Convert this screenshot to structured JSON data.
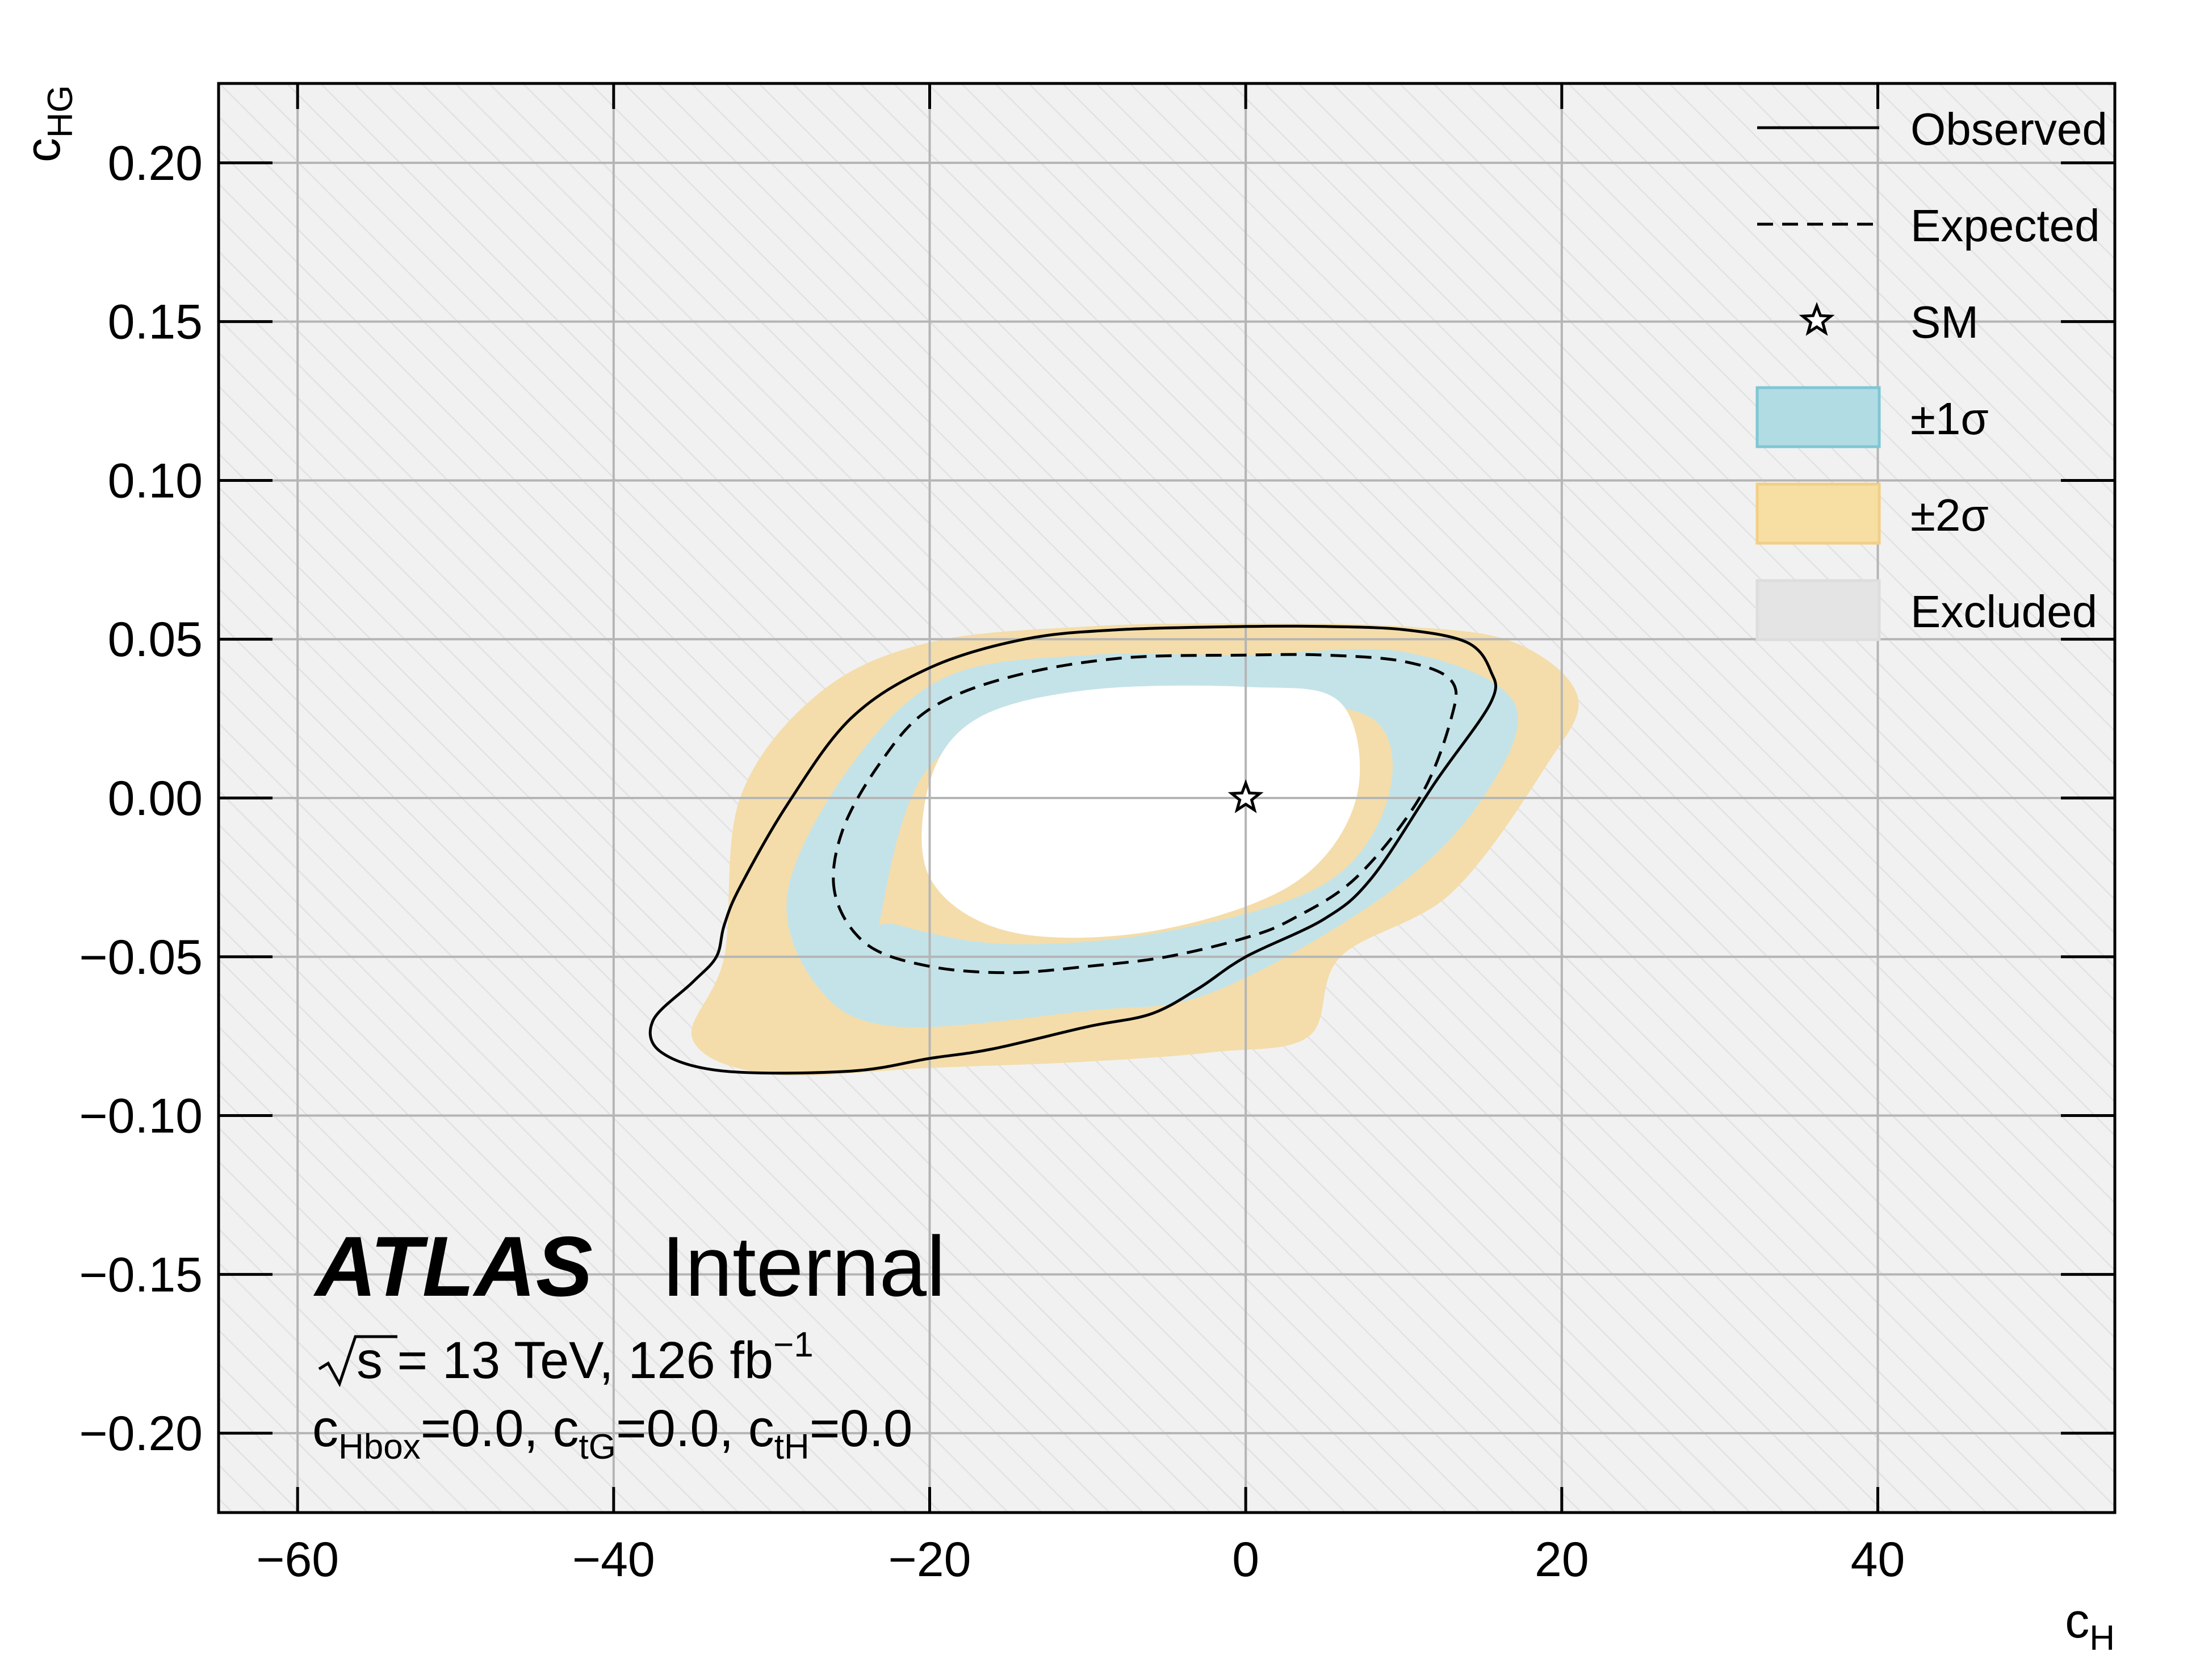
{
  "chart_data": {
    "type": "contour",
    "xlabel": "c",
    "xlabel_sub": "H",
    "ylabel": "c",
    "ylabel_sub": "HG",
    "xlim": [
      -65,
      55
    ],
    "ylim": [
      -0.225,
      0.225
    ],
    "x_ticks": [
      {
        "v": -60,
        "label": "−60"
      },
      {
        "v": -40,
        "label": "−40"
      },
      {
        "v": -20,
        "label": "−20"
      },
      {
        "v": 0,
        "label": "0"
      },
      {
        "v": 20,
        "label": "20"
      },
      {
        "v": 40,
        "label": "40"
      }
    ],
    "y_ticks": [
      {
        "v": 0.2,
        "label": "0.20"
      },
      {
        "v": 0.15,
        "label": "0.15"
      },
      {
        "v": 0.1,
        "label": "0.10"
      },
      {
        "v": 0.05,
        "label": "0.05"
      },
      {
        "v": 0.0,
        "label": "0.00"
      },
      {
        "v": -0.05,
        "label": "−0.05"
      },
      {
        "v": -0.1,
        "label": "−0.10"
      },
      {
        "v": -0.15,
        "label": "−0.15"
      },
      {
        "v": -0.2,
        "label": "−0.20"
      }
    ],
    "grid": true,
    "sm_point": {
      "x": 0,
      "y": 0
    },
    "series": [
      {
        "name": "±2σ",
        "kind": "band",
        "color": "#f4ddaa",
        "outer": [
          [
            -32,
            0.0
          ],
          [
            -27,
            0.033
          ],
          [
            -20,
            0.049
          ],
          [
            -10,
            0.054
          ],
          [
            0,
            0.055
          ],
          [
            10,
            0.054
          ],
          [
            17,
            0.049
          ],
          [
            21,
            0.032
          ],
          [
            19,
            0.01
          ],
          [
            13,
            -0.03
          ],
          [
            6,
            -0.05
          ],
          [
            4,
            -0.075
          ],
          [
            -2,
            -0.08
          ],
          [
            -10,
            -0.083
          ],
          [
            -20,
            -0.085
          ],
          [
            -30,
            -0.087
          ],
          [
            -35,
            -0.076
          ],
          [
            -33,
            -0.05
          ]
        ],
        "inner": [
          [
            -20,
            -0.025
          ],
          [
            -20,
            0.005
          ],
          [
            -17,
            0.025
          ],
          [
            -10,
            0.034
          ],
          [
            0,
            0.035
          ],
          [
            6,
            0.03
          ],
          [
            7,
            0.0
          ],
          [
            3,
            -0.027
          ],
          [
            -6,
            -0.042
          ],
          [
            -15,
            -0.042
          ]
        ]
      },
      {
        "name": "±1σ",
        "kind": "band",
        "color": "#c4e3e9",
        "outer": [
          [
            -29,
            -0.03
          ],
          [
            -25,
            0.01
          ],
          [
            -19,
            0.038
          ],
          [
            -10,
            0.045
          ],
          [
            0,
            0.045
          ],
          [
            10,
            0.046
          ],
          [
            17,
            0.03
          ],
          [
            15,
            0.0
          ],
          [
            9,
            -0.03
          ],
          [
            -2,
            -0.061
          ],
          [
            -10,
            -0.067
          ],
          [
            -22,
            -0.072
          ],
          [
            -27,
            -0.06
          ]
        ],
        "inner": [
          [
            -23,
            -0.035
          ],
          [
            -20,
            0.01
          ],
          [
            -12,
            0.028
          ],
          [
            0,
            0.03
          ],
          [
            8,
            0.025
          ],
          [
            9,
            0.0
          ],
          [
            5,
            -0.027
          ],
          [
            -5,
            -0.042
          ],
          [
            -15,
            -0.046
          ],
          [
            -22,
            -0.04
          ]
        ]
      },
      {
        "name": "Observed",
        "kind": "line",
        "style": "solid",
        "color": "#000000",
        "points": [
          [
            -37.5,
            -0.07
          ],
          [
            -35,
            -0.058
          ],
          [
            -33.5,
            -0.05
          ],
          [
            -33,
            -0.04
          ],
          [
            -32,
            -0.028
          ],
          [
            -29,
            -0.002
          ],
          [
            -25,
            0.025
          ],
          [
            -20,
            0.041
          ],
          [
            -14,
            0.05
          ],
          [
            -8,
            0.053
          ],
          [
            0,
            0.054
          ],
          [
            5,
            0.054
          ],
          [
            10,
            0.053
          ],
          [
            14,
            0.049
          ],
          [
            15.5,
            0.04
          ],
          [
            15.5,
            0.03
          ],
          [
            12,
            0.005
          ],
          [
            8,
            -0.025
          ],
          [
            5,
            -0.038
          ],
          [
            0,
            -0.05
          ],
          [
            -3,
            -0.06
          ],
          [
            -6,
            -0.068
          ],
          [
            -10,
            -0.072
          ],
          [
            -16,
            -0.079
          ],
          [
            -20,
            -0.082
          ],
          [
            -25,
            -0.086
          ],
          [
            -33,
            -0.086
          ],
          [
            -37,
            -0.08
          ]
        ]
      },
      {
        "name": "Expected",
        "kind": "line",
        "style": "dashed",
        "color": "#000000",
        "points": [
          [
            -26,
            -0.03
          ],
          [
            -25.5,
            -0.01
          ],
          [
            -23,
            0.012
          ],
          [
            -20,
            0.028
          ],
          [
            -15,
            0.038
          ],
          [
            -8,
            0.044
          ],
          [
            0,
            0.045
          ],
          [
            5,
            0.045
          ],
          [
            10,
            0.043
          ],
          [
            13,
            0.037
          ],
          [
            13,
            0.025
          ],
          [
            11,
            0.0
          ],
          [
            7,
            -0.025
          ],
          [
            3,
            -0.038
          ],
          [
            0,
            -0.044
          ],
          [
            -5,
            -0.05
          ],
          [
            -10,
            -0.053
          ],
          [
            -15,
            -0.055
          ],
          [
            -20,
            -0.053
          ],
          [
            -24,
            -0.046
          ]
        ]
      }
    ],
    "legend_position": "top-right"
  },
  "legend": [
    {
      "label": "Observed",
      "kind": "solid"
    },
    {
      "label": "Expected",
      "kind": "dashed"
    },
    {
      "label": "SM",
      "kind": "star"
    },
    {
      "label": "±1σ",
      "kind": "box",
      "color": "#b2dce4",
      "edge": "#7fc6d4"
    },
    {
      "label": "±2σ",
      "kind": "box",
      "color": "#f7dfa3",
      "edge": "#f2cf86"
    },
    {
      "label": "Excluded",
      "kind": "box",
      "color": "#e4e4e4",
      "edge": "#dddddd"
    }
  ],
  "annotation": {
    "experiment": "ATLAS",
    "status": "Internal",
    "energy": "s = 13 TeV, 126 fb",
    "energy_sup": "−1",
    "params": [
      {
        "base": "c",
        "sub": "Hbox",
        "tail": "=0.0, "
      },
      {
        "base": "c",
        "sub": "tG",
        "tail": "=0.0, "
      },
      {
        "base": "c",
        "sub": "tH",
        "tail": "=0.0"
      }
    ]
  },
  "colors": {
    "plot_bg": "#f1f1f1",
    "hatch": "#e2e2e2",
    "grid": "#b5b5b5",
    "two_sigma": "#f4ddaa",
    "one_sigma": "#c4e3e9",
    "allowed": "#ffffff"
  }
}
